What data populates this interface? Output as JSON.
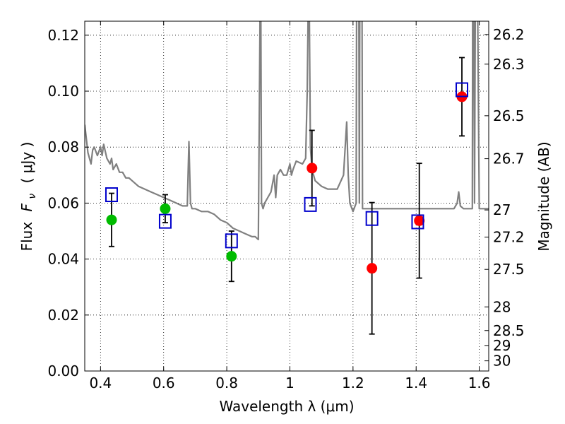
{
  "chart_data": {
    "type": "scatter",
    "xlabel": "Wavelength  λ (μm)",
    "ylabel_text": "Flux",
    "ylabel_symbol": "F",
    "ylabel_subscript": "ν",
    "ylabel_unit": "( μJy )",
    "ylabel_right": "Magnitude (AB)",
    "xlim": [
      0.35,
      1.63
    ],
    "ylim": [
      0.0,
      0.125
    ],
    "grid": true,
    "grid_style": "dotted",
    "x_ticks": [
      {
        "value": 0.4,
        "label": "0.4"
      },
      {
        "value": 0.6,
        "label": "0.6"
      },
      {
        "value": 0.8,
        "label": "0.8"
      },
      {
        "value": 1.0,
        "label": "1"
      },
      {
        "value": 1.2,
        "label": "1.2"
      },
      {
        "value": 1.4,
        "label": "1.4"
      },
      {
        "value": 1.6,
        "label": "1.6"
      }
    ],
    "y_ticks": [
      {
        "value": 0.0,
        "label": "0.00"
      },
      {
        "value": 0.02,
        "label": "0.02"
      },
      {
        "value": 0.04,
        "label": "0.04"
      },
      {
        "value": 0.06,
        "label": "0.06"
      },
      {
        "value": 0.08,
        "label": "0.08"
      },
      {
        "value": 0.1,
        "label": "0.10"
      },
      {
        "value": 0.12,
        "label": "0.12"
      }
    ],
    "right_ticks": [
      {
        "mag": 26.2,
        "label": "26.2"
      },
      {
        "mag": 26.3,
        "label": "26.3"
      },
      {
        "mag": 26.5,
        "label": "26.5"
      },
      {
        "mag": 26.7,
        "label": "26.7"
      },
      {
        "mag": 27,
        "label": "27"
      },
      {
        "mag": 27.2,
        "label": "27.2"
      },
      {
        "mag": 27.5,
        "label": "27.5"
      },
      {
        "mag": 28,
        "label": "28"
      },
      {
        "mag": 28.5,
        "label": "28.5"
      },
      {
        "mag": 29,
        "label": "29"
      },
      {
        "mag": 30,
        "label": "30"
      }
    ],
    "spectrum": {
      "color": "#808080",
      "x": [
        0.35,
        0.36,
        0.37,
        0.375,
        0.38,
        0.39,
        0.4,
        0.405,
        0.41,
        0.42,
        0.43,
        0.435,
        0.44,
        0.45,
        0.46,
        0.47,
        0.48,
        0.49,
        0.5,
        0.52,
        0.54,
        0.56,
        0.58,
        0.6,
        0.62,
        0.64,
        0.66,
        0.675,
        0.68,
        0.685,
        0.69,
        0.7,
        0.72,
        0.74,
        0.76,
        0.78,
        0.8,
        0.82,
        0.84,
        0.86,
        0.88,
        0.89,
        0.9,
        0.905,
        0.907,
        0.91,
        0.915,
        0.92,
        0.93,
        0.94,
        0.95,
        0.955,
        0.96,
        0.97,
        0.98,
        0.99,
        1.0,
        1.005,
        1.01,
        1.02,
        1.04,
        1.05,
        1.055,
        1.06,
        1.065,
        1.07,
        1.08,
        1.1,
        1.12,
        1.15,
        1.17,
        1.18,
        1.185,
        1.19,
        1.2,
        1.21,
        1.215,
        1.22,
        1.225,
        1.23,
        1.26,
        1.3,
        1.35,
        1.4,
        1.42,
        1.45,
        1.5,
        1.52,
        1.53,
        1.535,
        1.54,
        1.55,
        1.57,
        1.578,
        1.58,
        1.585,
        1.59,
        1.6,
        1.63
      ],
      "y": [
        0.088,
        0.078,
        0.074,
        0.079,
        0.08,
        0.077,
        0.08,
        0.077,
        0.081,
        0.076,
        0.074,
        0.076,
        0.072,
        0.074,
        0.071,
        0.071,
        0.069,
        0.069,
        0.068,
        0.066,
        0.065,
        0.064,
        0.063,
        0.062,
        0.061,
        0.06,
        0.059,
        0.059,
        0.082,
        0.06,
        0.058,
        0.058,
        0.057,
        0.057,
        0.056,
        0.054,
        0.053,
        0.051,
        0.05,
        0.049,
        0.048,
        0.048,
        0.047,
        0.12,
        0.16,
        0.06,
        0.058,
        0.06,
        0.062,
        0.064,
        0.07,
        0.062,
        0.07,
        0.072,
        0.07,
        0.07,
        0.074,
        0.07,
        0.072,
        0.075,
        0.074,
        0.076,
        0.1,
        0.15,
        0.08,
        0.072,
        0.068,
        0.066,
        0.065,
        0.065,
        0.07,
        0.089,
        0.07,
        0.06,
        0.057,
        0.06,
        0.3,
        0.06,
        0.3,
        0.058,
        0.058,
        0.058,
        0.058,
        0.058,
        0.058,
        0.058,
        0.058,
        0.058,
        0.06,
        0.064,
        0.059,
        0.058,
        0.058,
        0.058,
        0.2,
        0.06,
        0.2,
        0.058,
        0.058
      ]
    },
    "series": [
      {
        "color": "#00bb00",
        "marker": "circle",
        "x": [
          0.435,
          0.605,
          0.815
        ],
        "y": [
          0.054,
          0.058,
          0.041
        ],
        "yerr": [
          [
            0.0095,
            0.0095
          ],
          [
            0.005,
            0.005
          ],
          [
            0.009,
            0.009
          ]
        ]
      },
      {
        "color": "#ff0000",
        "marker": "circle",
        "x": [
          1.07,
          1.26,
          1.41,
          1.545
        ],
        "y": [
          0.0725,
          0.0367,
          0.0537,
          0.098
        ],
        "yerr": [
          [
            0.0135,
            0.0135
          ],
          [
            0.0235,
            0.0235
          ],
          [
            0.0205,
            0.0205
          ],
          [
            0.014,
            0.014
          ]
        ]
      },
      {
        "color": "#0000cc",
        "marker": "square",
        "x": [
          0.435,
          0.605,
          0.815,
          1.065,
          1.26,
          1.405,
          1.545
        ],
        "y": [
          0.063,
          0.0535,
          0.0465,
          0.0595,
          0.0545,
          0.0533,
          0.1005
        ]
      }
    ]
  }
}
